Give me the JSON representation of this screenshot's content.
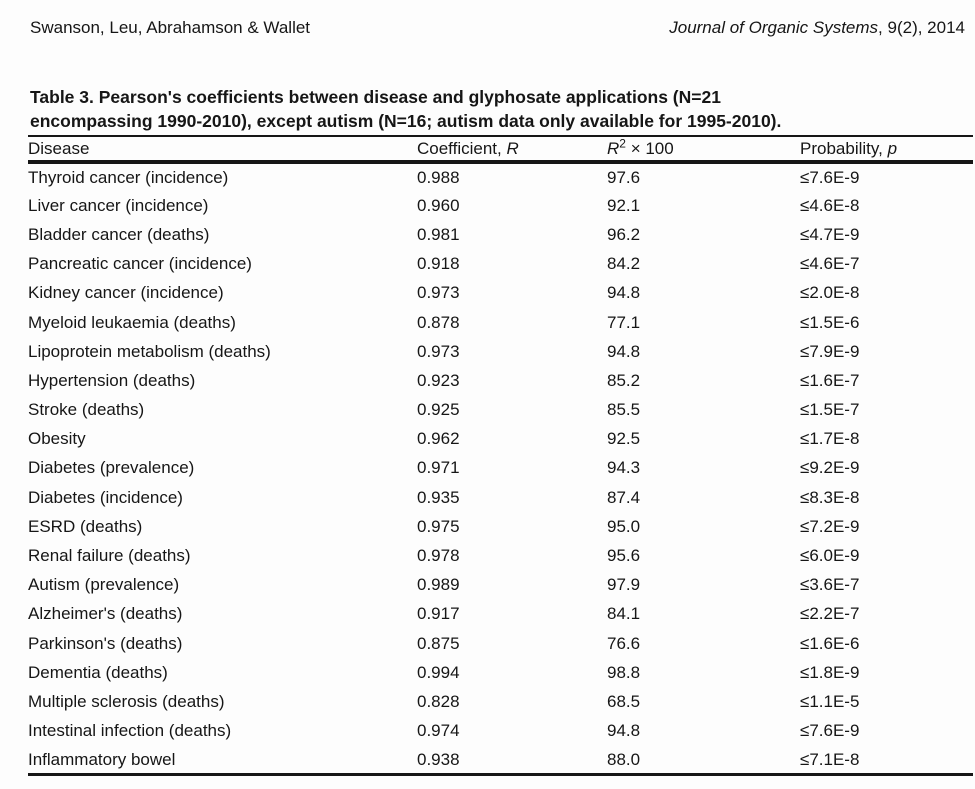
{
  "page_header": {
    "authors": "Swanson, Leu, Abrahamson & Wallet",
    "journal_title": "Journal of Organic Systems",
    "journal_issue": ", 9(2), 2014"
  },
  "table": {
    "caption_line1": "Table 3. Pearson's coefficients between disease and glyphosate applications (N=21",
    "caption_line2": "encompassing 1990-2010), except autism (N=16; autism data only available for 1995-2010).",
    "header": {
      "disease": "Disease",
      "coefficient_label": "Coefficient, ",
      "coefficient_symbol": "R",
      "r2_symbol": "R",
      "r2_exponent": "2",
      "r2_times": " × 100",
      "probability_label": "Probability, ",
      "probability_symbol": "p"
    },
    "rows": [
      {
        "disease": "Thyroid cancer (incidence)",
        "r": "0.988",
        "r2": "97.6",
        "p": "≤7.6E-9"
      },
      {
        "disease": "Liver cancer (incidence)",
        "r": "0.960",
        "r2": "92.1",
        "p": "≤4.6E-8"
      },
      {
        "disease": "Bladder cancer (deaths)",
        "r": "0.981",
        "r2": "96.2",
        "p": "≤4.7E-9"
      },
      {
        "disease": "Pancreatic cancer (incidence)",
        "r": "0.918",
        "r2": "84.2",
        "p": "≤4.6E-7"
      },
      {
        "disease": "Kidney cancer (incidence)",
        "r": "0.973",
        "r2": "94.8",
        "p": "≤2.0E-8"
      },
      {
        "disease": "Myeloid leukaemia (deaths)",
        "r": "0.878",
        "r2": "77.1",
        "p": "≤1.5E-6"
      },
      {
        "disease": "Lipoprotein metabolism (deaths)",
        "r": "0.973",
        "r2": "94.8",
        "p": "≤7.9E-9"
      },
      {
        "disease": "Hypertension (deaths)",
        "r": "0.923",
        "r2": "85.2",
        "p": "≤1.6E-7"
      },
      {
        "disease": "Stroke (deaths)",
        "r": "0.925",
        "r2": "85.5",
        "p": "≤1.5E-7"
      },
      {
        "disease": "Obesity",
        "r": "0.962",
        "r2": "92.5",
        "p": "≤1.7E-8"
      },
      {
        "disease": "Diabetes (prevalence)",
        "r": "0.971",
        "r2": "94.3",
        "p": "≤9.2E-9"
      },
      {
        "disease": "Diabetes (incidence)",
        "r": "0.935",
        "r2": "87.4",
        "p": "≤8.3E-8"
      },
      {
        "disease": "ESRD (deaths)",
        "r": "0.975",
        "r2": "95.0",
        "p": "≤7.2E-9"
      },
      {
        "disease": "Renal failure (deaths)",
        "r": "0.978",
        "r2": "95.6",
        "p": "≤6.0E-9"
      },
      {
        "disease": "Autism (prevalence)",
        "r": "0.989",
        "r2": "97.9",
        "p": "≤3.6E-7"
      },
      {
        "disease": "Alzheimer's (deaths)",
        "r": "0.917",
        "r2": "84.1",
        "p": "≤2.2E-7"
      },
      {
        "disease": "Parkinson's (deaths)",
        "r": "0.875",
        "r2": "76.6",
        "p": "≤1.6E-6"
      },
      {
        "disease": "Dementia (deaths)",
        "r": "0.994",
        "r2": "98.8",
        "p": "≤1.8E-9"
      },
      {
        "disease": "Multiple sclerosis (deaths)",
        "r": "0.828",
        "r2": "68.5",
        "p": "≤1.1E-5"
      },
      {
        "disease": "Intestinal infection (deaths)",
        "r": "0.974",
        "r2": "94.8",
        "p": "≤7.6E-9"
      },
      {
        "disease": "Inflammatory bowel",
        "r": "0.938",
        "r2": "88.0",
        "p": "≤7.1E-8"
      }
    ]
  }
}
